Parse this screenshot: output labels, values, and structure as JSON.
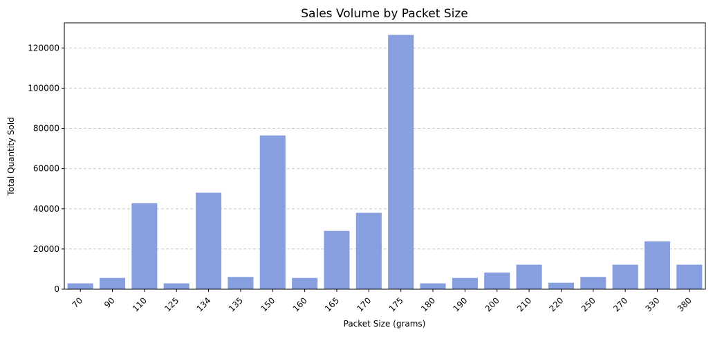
{
  "chart_data": {
    "type": "bar",
    "title": "Sales Volume by Packet Size",
    "xlabel": "Packet Size (grams)",
    "ylabel": "Total Quantity Sold",
    "categories": [
      "70",
      "90",
      "110",
      "125",
      "134",
      "135",
      "150",
      "160",
      "165",
      "170",
      "175",
      "180",
      "190",
      "200",
      "210",
      "220",
      "250",
      "270",
      "330",
      "380"
    ],
    "values": [
      2900,
      5600,
      42800,
      2900,
      48000,
      6100,
      76500,
      5600,
      29000,
      38000,
      126500,
      2900,
      5600,
      8300,
      12200,
      3200,
      6100,
      12200,
      23800,
      12200
    ],
    "ylim": [
      0,
      132500
    ],
    "yticks": [
      0,
      20000,
      40000,
      60000,
      80000,
      100000,
      120000
    ],
    "bar_color": "#889fdf",
    "grid": "horizontal dashed",
    "x_tick_rotation": 45
  }
}
